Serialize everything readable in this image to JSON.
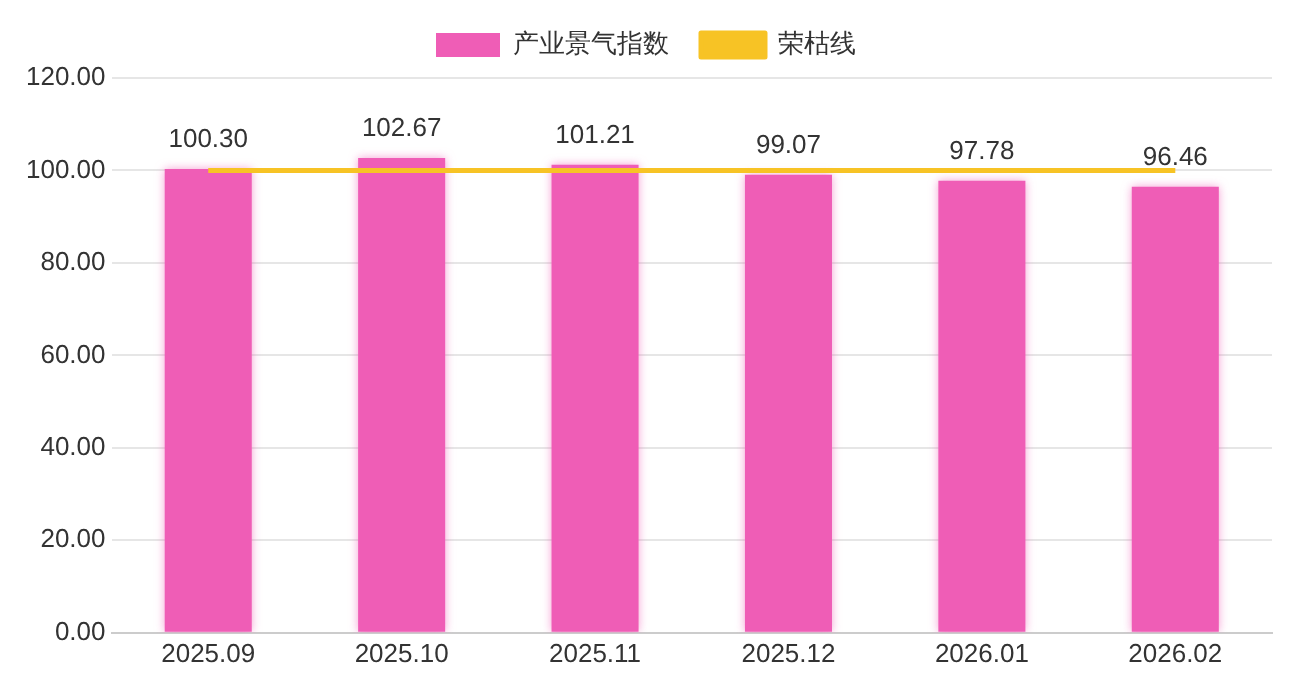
{
  "chart_data": {
    "type": "bar",
    "categories": [
      "2025.09",
      "2025.10",
      "2025.11",
      "2025.12",
      "2026.01",
      "2026.02"
    ],
    "series": [
      {
        "name": "产业景气指数",
        "color": "#ef5db6",
        "values": [
          100.3,
          102.67,
          101.21,
          99.07,
          97.78,
          96.46
        ],
        "value_labels": [
          "100.30",
          "102.67",
          "101.21",
          "99.07",
          "97.78",
          "96.46"
        ]
      },
      {
        "name": "荣枯线",
        "type": "line",
        "color": "#f7c325",
        "values": [
          100,
          100,
          100,
          100,
          100,
          100
        ]
      }
    ],
    "ylim": [
      0,
      120
    ],
    "yticks": [
      {
        "value": 0,
        "label": "0.00"
      },
      {
        "value": 20,
        "label": "20.00"
      },
      {
        "value": 40,
        "label": "40.00"
      },
      {
        "value": 60,
        "label": "60.00"
      },
      {
        "value": 80,
        "label": "80.00"
      },
      {
        "value": 100,
        "label": "100.00"
      },
      {
        "value": 120,
        "label": "120.00"
      }
    ],
    "grid": "y",
    "legend": "top",
    "marker": "none"
  }
}
